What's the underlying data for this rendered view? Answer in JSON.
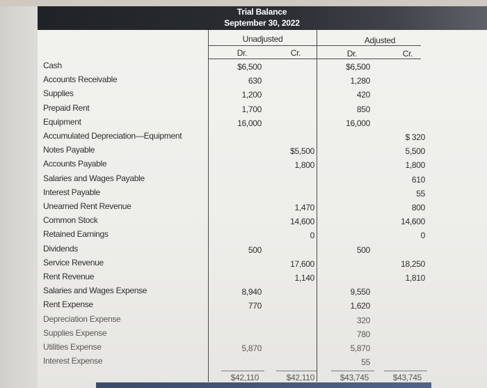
{
  "title": {
    "line1": "Trial Balance",
    "line2": "September 30, 2022"
  },
  "groups": {
    "unadjusted": "Unadjusted",
    "adjusted": "Adjusted"
  },
  "columns": {
    "u_dr": "Dr.",
    "u_cr": "Cr.",
    "a_dr": "Dr.",
    "a_cr": "Cr."
  },
  "rows": [
    {
      "account": "Cash",
      "u_dr": "$6,500",
      "u_cr": "",
      "a_dr": "$6,500",
      "a_cr": ""
    },
    {
      "account": "Accounts Receivable",
      "u_dr": "630",
      "u_cr": "",
      "a_dr": "1,280",
      "a_cr": ""
    },
    {
      "account": "Supplies",
      "u_dr": "1,200",
      "u_cr": "",
      "a_dr": "420",
      "a_cr": ""
    },
    {
      "account": "Prepaid Rent",
      "u_dr": "1,700",
      "u_cr": "",
      "a_dr": "850",
      "a_cr": ""
    },
    {
      "account": "Equipment",
      "u_dr": "16,000",
      "u_cr": "",
      "a_dr": "16,000",
      "a_cr": ""
    },
    {
      "account": "Accumulated Depreciation—Equipment",
      "u_dr": "",
      "u_cr": "",
      "a_dr": "",
      "a_cr": "$ 320"
    },
    {
      "account": "Notes Payable",
      "u_dr": "",
      "u_cr": "$5,500",
      "a_dr": "",
      "a_cr": "5,500"
    },
    {
      "account": "Accounts Payable",
      "u_dr": "",
      "u_cr": "1,800",
      "a_dr": "",
      "a_cr": "1,800"
    },
    {
      "account": "Salaries and Wages Payable",
      "u_dr": "",
      "u_cr": "",
      "a_dr": "",
      "a_cr": "610"
    },
    {
      "account": "Interest Payable",
      "u_dr": "",
      "u_cr": "",
      "a_dr": "",
      "a_cr": "55"
    },
    {
      "account": "Unearned Rent Revenue",
      "u_dr": "",
      "u_cr": "1,470",
      "a_dr": "",
      "a_cr": "800"
    },
    {
      "account": "Common Stock",
      "u_dr": "",
      "u_cr": "14,600",
      "a_dr": "",
      "a_cr": "14,600"
    },
    {
      "account": "Retained Earnings",
      "u_dr": "",
      "u_cr": "0",
      "a_dr": "",
      "a_cr": "0"
    },
    {
      "account": "Dividends",
      "u_dr": "500",
      "u_cr": "",
      "a_dr": "500",
      "a_cr": ""
    },
    {
      "account": "Service Revenue",
      "u_dr": "",
      "u_cr": "17,600",
      "a_dr": "",
      "a_cr": "18,250"
    },
    {
      "account": "Rent Revenue",
      "u_dr": "",
      "u_cr": "1,140",
      "a_dr": "",
      "a_cr": "1,810"
    },
    {
      "account": "Salaries and Wages Expense",
      "u_dr": "8,940",
      "u_cr": "",
      "a_dr": "9,550",
      "a_cr": ""
    },
    {
      "account": "Rent Expense",
      "u_dr": "770",
      "u_cr": "",
      "a_dr": "1,620",
      "a_cr": ""
    },
    {
      "account": "Depreciation Expense",
      "u_dr": "",
      "u_cr": "",
      "a_dr": "320",
      "a_cr": ""
    },
    {
      "account": "Supplies Expense",
      "u_dr": "",
      "u_cr": "",
      "a_dr": "780",
      "a_cr": ""
    },
    {
      "account": "Utilities Expense",
      "u_dr": "5,870",
      "u_cr": "",
      "a_dr": "5,870",
      "a_cr": ""
    },
    {
      "account": "Interest Expense",
      "u_dr": "",
      "u_cr": "",
      "a_dr": "55",
      "a_cr": ""
    }
  ],
  "totals": {
    "u_dr": "$42,110",
    "u_cr": "$42,110",
    "a_dr": "$43,745",
    "a_cr": "$43,745"
  }
}
